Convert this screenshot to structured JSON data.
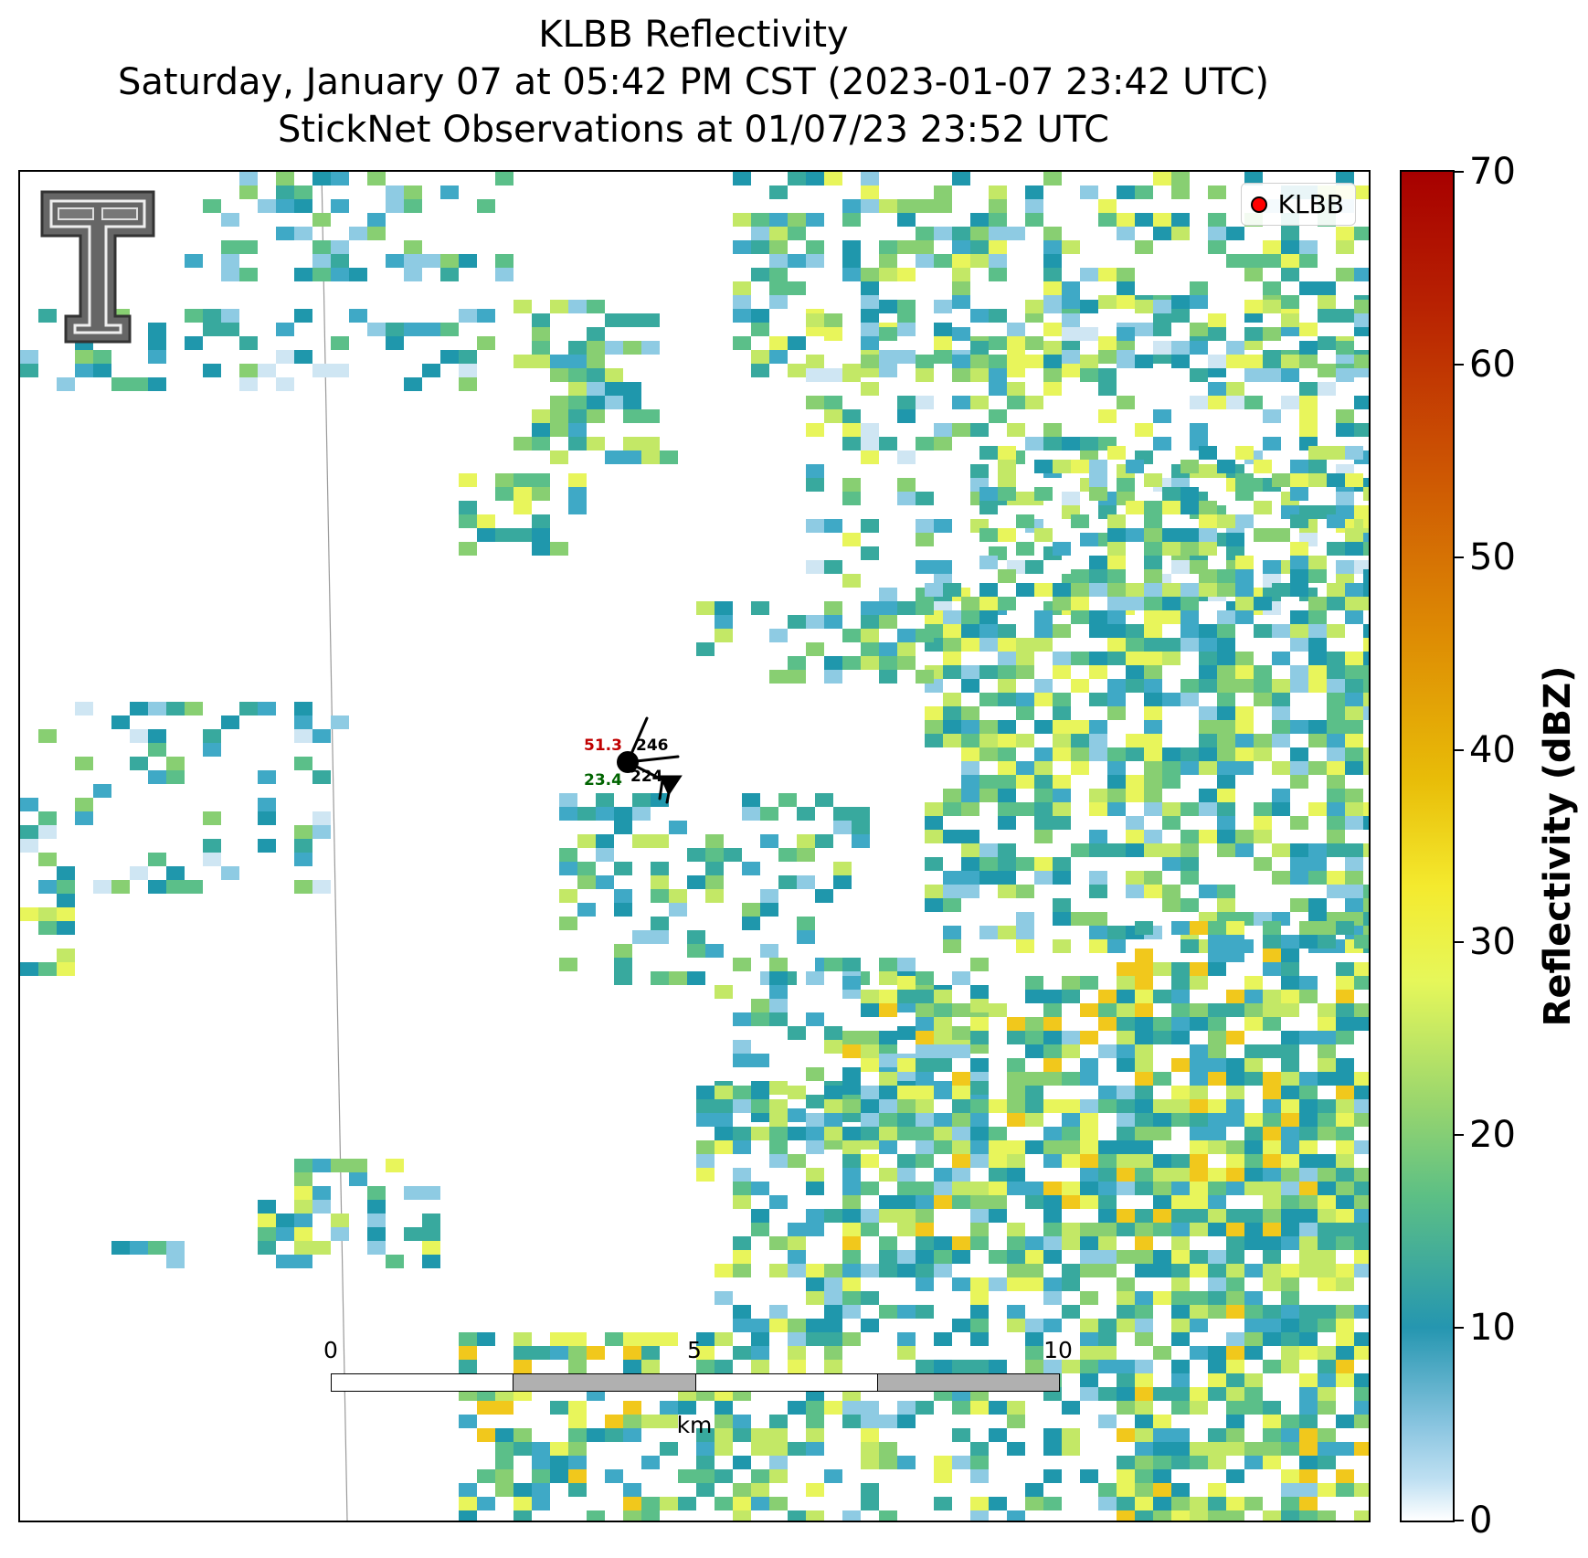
{
  "title": {
    "line1": "KLBB Reflectivity",
    "line2": "Saturday, January 07 at 05:42 PM CST (2023-01-07 23:42 UTC)",
    "line3": "StickNet Observations at 01/07/23 23:52 UTC"
  },
  "legend": {
    "label": "KLBB",
    "marker_color": "#ff0000"
  },
  "logo": {
    "icon": "texas-tech-double-t-logo"
  },
  "station": {
    "temperature": "51.3",
    "temperature_color": "#c00000",
    "dewpoint": "23.4",
    "dewpoint_color": "#006400",
    "top_value": "246",
    "bottom_value": "224"
  },
  "scalebar": {
    "ticks": [
      "0",
      "5",
      "10"
    ],
    "unit": "km",
    "segment_colors": [
      "#ffffff",
      "#b0b0b0",
      "#ffffff",
      "#b0b0b0"
    ]
  },
  "colorbar": {
    "label": "Reflectivity (dBZ)",
    "ticks": [
      "0",
      "10",
      "20",
      "30",
      "40",
      "50",
      "60",
      "70"
    ],
    "range": [
      0,
      70
    ]
  },
  "reflectivity_palette": [
    "#cfe6f3",
    "#8ecbe3",
    "#3fa9c6",
    "#1f97ac",
    "#38a99e",
    "#5bbf89",
    "#88cf72",
    "#c3e866",
    "#e8f55b",
    "#f1c81c"
  ]
}
